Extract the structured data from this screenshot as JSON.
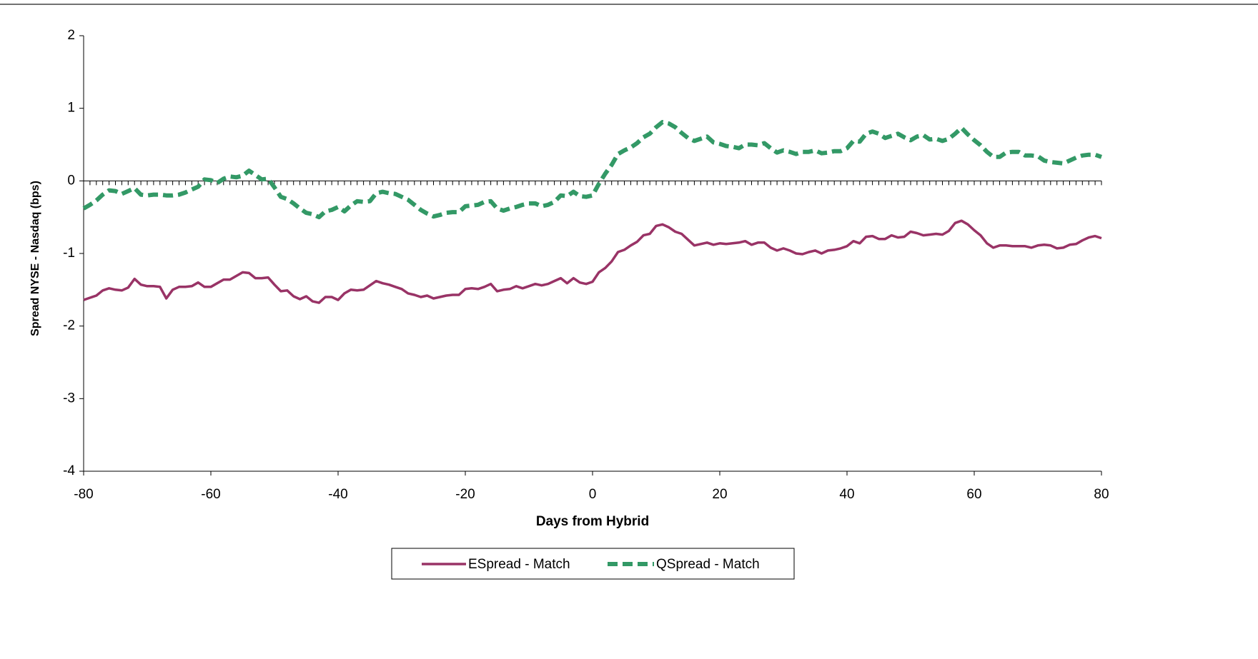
{
  "chart_data": {
    "type": "line",
    "x_label": "Days from Hybrid",
    "y_label": "Spread NYSE - Nasdaq (bps)",
    "xlim": [
      -80,
      80
    ],
    "xticks": [
      -80,
      -60,
      -40,
      -20,
      0,
      20,
      40,
      60,
      80
    ],
    "ylim": [
      -4,
      2
    ],
    "yticks": [
      -4,
      -3,
      -2,
      -1,
      0,
      1,
      2
    ],
    "legend": "bottom",
    "x": [
      -80,
      -79,
      -78,
      -77,
      -76,
      -75,
      -74,
      -73,
      -72,
      -71,
      -70,
      -69,
      -68,
      -67,
      -66,
      -65,
      -64,
      -63,
      -62,
      -61,
      -60,
      -59,
      -58,
      -57,
      -56,
      -55,
      -54,
      -53,
      -52,
      -51,
      -50,
      -49,
      -48,
      -47,
      -46,
      -45,
      -44,
      -43,
      -42,
      -41,
      -40,
      -39,
      -38,
      -37,
      -36,
      -35,
      -34,
      -33,
      -32,
      -31,
      -30,
      -29,
      -28,
      -27,
      -26,
      -25,
      -24,
      -23,
      -22,
      -21,
      -20,
      -19,
      -18,
      -17,
      -16,
      -15,
      -14,
      -13,
      -12,
      -11,
      -10,
      -9,
      -8,
      -7,
      -6,
      -5,
      -4,
      -3,
      -2,
      -1,
      0,
      1,
      2,
      3,
      4,
      5,
      6,
      7,
      8,
      9,
      10,
      11,
      12,
      13,
      14,
      15,
      16,
      17,
      18,
      19,
      20,
      21,
      22,
      23,
      24,
      25,
      26,
      27,
      28,
      29,
      30,
      31,
      32,
      33,
      34,
      35,
      36,
      37,
      38,
      39,
      40,
      41,
      42,
      43,
      44,
      45,
      46,
      47,
      48,
      49,
      50,
      51,
      52,
      53,
      54,
      55,
      56,
      57,
      58,
      59,
      60,
      61,
      62,
      63,
      64,
      65,
      66,
      67,
      68,
      69,
      70,
      71,
      72,
      73,
      74,
      75,
      76,
      77,
      78,
      79,
      80
    ],
    "series": [
      {
        "name": "ESpread - Match",
        "color": "#993366",
        "dashed": false,
        "values": [
          -1.64,
          -1.61,
          -1.58,
          -1.51,
          -1.48,
          -1.5,
          -1.51,
          -1.47,
          -1.35,
          -1.43,
          -1.45,
          -1.45,
          -1.46,
          -1.62,
          -1.5,
          -1.46,
          -1.46,
          -1.45,
          -1.4,
          -1.46,
          -1.46,
          -1.41,
          -1.36,
          -1.36,
          -1.31,
          -1.26,
          -1.27,
          -1.34,
          -1.34,
          -1.33,
          -1.43,
          -1.52,
          -1.51,
          -1.59,
          -1.63,
          -1.59,
          -1.66,
          -1.68,
          -1.6,
          -1.6,
          -1.64,
          -1.55,
          -1.5,
          -1.51,
          -1.5,
          -1.44,
          -1.38,
          -1.41,
          -1.43,
          -1.46,
          -1.49,
          -1.55,
          -1.57,
          -1.6,
          -1.58,
          -1.62,
          -1.6,
          -1.58,
          -1.57,
          -1.57,
          -1.49,
          -1.48,
          -1.49,
          -1.46,
          -1.42,
          -1.52,
          -1.5,
          -1.49,
          -1.45,
          -1.48,
          -1.45,
          -1.42,
          -1.44,
          -1.42,
          -1.38,
          -1.34,
          -1.41,
          -1.34,
          -1.4,
          -1.42,
          -1.39,
          -1.26,
          -1.2,
          -1.11,
          -0.98,
          -0.95,
          -0.89,
          -0.84,
          -0.75,
          -0.73,
          -0.62,
          -0.6,
          -0.64,
          -0.7,
          -0.73,
          -0.81,
          -0.89,
          -0.87,
          -0.85,
          -0.88,
          -0.86,
          -0.87,
          -0.86,
          -0.85,
          -0.83,
          -0.88,
          -0.85,
          -0.85,
          -0.92,
          -0.96,
          -0.93,
          -0.96,
          -1.0,
          -1.01,
          -0.98,
          -0.96,
          -1.0,
          -0.96,
          -0.95,
          -0.93,
          -0.9,
          -0.83,
          -0.86,
          -0.77,
          -0.76,
          -0.8,
          -0.8,
          -0.75,
          -0.78,
          -0.77,
          -0.7,
          -0.72,
          -0.75,
          -0.74,
          -0.73,
          -0.74,
          -0.69,
          -0.58,
          -0.55,
          -0.6,
          -0.68,
          -0.75,
          -0.86,
          -0.92,
          -0.89,
          -0.89,
          -0.9,
          -0.9,
          -0.9,
          -0.92,
          -0.89,
          -0.88,
          -0.89,
          -0.93,
          -0.92,
          -0.88,
          -0.87,
          -0.82,
          -0.78,
          -0.76,
          -0.79
        ]
      },
      {
        "name": "QSpread - Match",
        "color": "#339966",
        "dashed": true,
        "values": [
          -0.38,
          -0.33,
          -0.27,
          -0.19,
          -0.13,
          -0.14,
          -0.18,
          -0.14,
          -0.1,
          -0.19,
          -0.2,
          -0.19,
          -0.19,
          -0.2,
          -0.2,
          -0.19,
          -0.16,
          -0.12,
          -0.08,
          0.02,
          0.01,
          -0.03,
          0.03,
          0.06,
          0.05,
          0.07,
          0.14,
          0.08,
          0.02,
          0.03,
          -0.09,
          -0.22,
          -0.25,
          -0.31,
          -0.38,
          -0.44,
          -0.46,
          -0.5,
          -0.42,
          -0.4,
          -0.36,
          -0.42,
          -0.34,
          -0.28,
          -0.29,
          -0.28,
          -0.17,
          -0.15,
          -0.17,
          -0.18,
          -0.22,
          -0.26,
          -0.33,
          -0.4,
          -0.45,
          -0.49,
          -0.47,
          -0.44,
          -0.43,
          -0.43,
          -0.35,
          -0.34,
          -0.33,
          -0.29,
          -0.28,
          -0.38,
          -0.41,
          -0.38,
          -0.36,
          -0.33,
          -0.31,
          -0.31,
          -0.35,
          -0.33,
          -0.29,
          -0.2,
          -0.21,
          -0.15,
          -0.21,
          -0.22,
          -0.2,
          -0.04,
          0.1,
          0.22,
          0.37,
          0.42,
          0.46,
          0.52,
          0.6,
          0.65,
          0.74,
          0.81,
          0.79,
          0.74,
          0.66,
          0.59,
          0.55,
          0.58,
          0.61,
          0.53,
          0.51,
          0.48,
          0.47,
          0.45,
          0.5,
          0.5,
          0.49,
          0.52,
          0.45,
          0.39,
          0.42,
          0.4,
          0.37,
          0.4,
          0.4,
          0.42,
          0.38,
          0.39,
          0.41,
          0.41,
          0.45,
          0.55,
          0.54,
          0.65,
          0.68,
          0.65,
          0.59,
          0.62,
          0.65,
          0.6,
          0.56,
          0.61,
          0.63,
          0.57,
          0.58,
          0.55,
          0.58,
          0.65,
          0.73,
          0.64,
          0.56,
          0.49,
          0.4,
          0.33,
          0.33,
          0.39,
          0.4,
          0.4,
          0.35,
          0.35,
          0.34,
          0.28,
          0.26,
          0.25,
          0.24,
          0.28,
          0.32,
          0.35,
          0.36,
          0.36,
          0.33
        ]
      }
    ]
  }
}
